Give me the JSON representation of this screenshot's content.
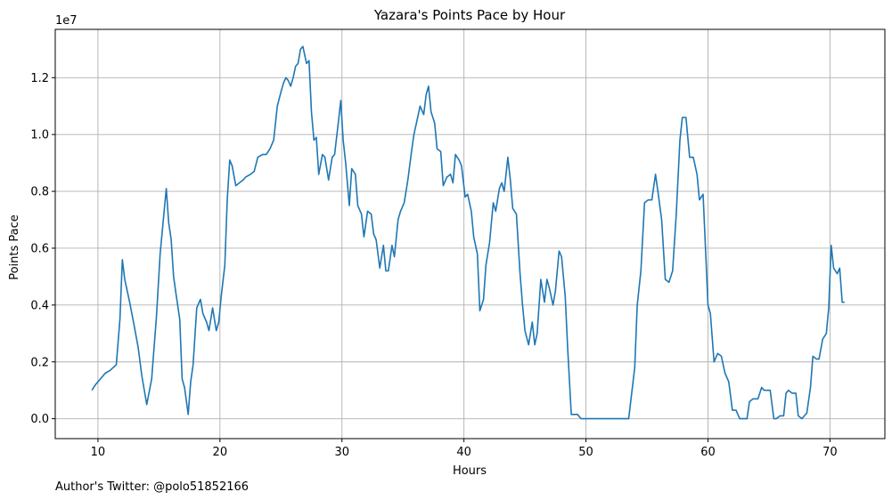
{
  "chart_data": {
    "type": "line",
    "title": "Yazara's Points Pace by Hour",
    "xlabel": "Hours",
    "ylabel": "Points Pace",
    "scale_note": "1e7",
    "footnote": "Author's Twitter: @polo51852166",
    "xlim": [
      6.5,
      74.5
    ],
    "ylim": [
      -0.07,
      1.37
    ],
    "xticks": [
      10,
      20,
      30,
      40,
      50,
      60,
      70
    ],
    "yticks": [
      0.0,
      0.2,
      0.4,
      0.6,
      0.8,
      1.0,
      1.2
    ],
    "ytick_labels": [
      "0.0",
      "0.2",
      "0.4",
      "0.6",
      "0.8",
      "1.0",
      "1.2"
    ],
    "grid": true,
    "colors": {
      "line": "#1f77b4",
      "grid": "#b0b0b0"
    },
    "series": [
      {
        "x": [
          9.5,
          9.8,
          10.2,
          10.6,
          11.0,
          11.5,
          11.8,
          12.0,
          12.2,
          12.6,
          13.0,
          13.3,
          13.6,
          14.0,
          14.4,
          14.8,
          15.1,
          15.4,
          15.6,
          15.8,
          16.0,
          16.2,
          16.4,
          16.7,
          16.9,
          17.1,
          17.4,
          17.6,
          17.8,
          18.1,
          18.4,
          18.6,
          18.9,
          19.1,
          19.4,
          19.7,
          19.9,
          20.1,
          20.4,
          20.6,
          20.8,
          21.0,
          21.3,
          21.6,
          21.9,
          22.1,
          22.5,
          22.8,
          23.1,
          23.5,
          23.8,
          24.1,
          24.4,
          24.7,
          25.0,
          25.2,
          25.4,
          25.6,
          25.8,
          26.0,
          26.2,
          26.4,
          26.6,
          26.8,
          27.1,
          27.3,
          27.5,
          27.7,
          27.9,
          28.1,
          28.4,
          28.6,
          28.9,
          29.2,
          29.4,
          29.7,
          29.9,
          30.1,
          30.3,
          30.6,
          30.8,
          31.1,
          31.3,
          31.6,
          31.8,
          32.1,
          32.4,
          32.6,
          32.8,
          33.1,
          33.4,
          33.6,
          33.8,
          34.1,
          34.3,
          34.6,
          34.8,
          35.1,
          35.4,
          35.7,
          35.9,
          36.1,
          36.4,
          36.7,
          36.9,
          37.1,
          37.3,
          37.6,
          37.8,
          38.1,
          38.3,
          38.6,
          38.9,
          39.1,
          39.3,
          39.6,
          39.8,
          40.1,
          40.3,
          40.6,
          40.8,
          41.1,
          41.3,
          41.6,
          41.8,
          42.1,
          42.4,
          42.6,
          42.9,
          43.1,
          43.3,
          43.6,
          43.8,
          44.0,
          44.3,
          44.6,
          44.8,
          45.0,
          45.3,
          45.6,
          45.8,
          46.0,
          46.3,
          46.6,
          46.8,
          47.0,
          47.3,
          47.5,
          47.8,
          48.0,
          48.3,
          48.5,
          48.8,
          49.0,
          49.3,
          49.6,
          49.8,
          50.0,
          50.5,
          51.0,
          51.5,
          52.0,
          52.5,
          53.0,
          53.5,
          54.0,
          54.2,
          54.5,
          54.8,
          55.1,
          55.4,
          55.7,
          55.9,
          56.2,
          56.5,
          56.8,
          57.1,
          57.4,
          57.7,
          57.9,
          58.2,
          58.5,
          58.8,
          59.1,
          59.3,
          59.6,
          59.8,
          60.0,
          60.2,
          60.5,
          60.8,
          61.1,
          61.4,
          61.7,
          62.0,
          62.3,
          62.6,
          62.9,
          63.2,
          63.4,
          63.7,
          63.9,
          64.1,
          64.4,
          64.6,
          64.9,
          65.1,
          65.4,
          65.6,
          65.9,
          66.2,
          66.4,
          66.6,
          66.9,
          67.2,
          67.4,
          67.7,
          67.9,
          68.1,
          68.4,
          68.6,
          68.9,
          69.1,
          69.4,
          69.7,
          69.9,
          70.1,
          70.3,
          70.6,
          70.8,
          71.0,
          71.2
        ],
        "y": [
          0.1,
          0.12,
          0.14,
          0.16,
          0.17,
          0.19,
          0.35,
          0.56,
          0.49,
          0.41,
          0.32,
          0.25,
          0.15,
          0.05,
          0.14,
          0.36,
          0.58,
          0.72,
          0.81,
          0.69,
          0.63,
          0.5,
          0.44,
          0.35,
          0.14,
          0.11,
          0.015,
          0.13,
          0.19,
          0.39,
          0.42,
          0.37,
          0.34,
          0.31,
          0.39,
          0.31,
          0.34,
          0.43,
          0.54,
          0.77,
          0.91,
          0.89,
          0.82,
          0.83,
          0.84,
          0.85,
          0.86,
          0.87,
          0.92,
          0.93,
          0.93,
          0.95,
          0.98,
          1.1,
          1.15,
          1.18,
          1.2,
          1.19,
          1.17,
          1.2,
          1.24,
          1.25,
          1.3,
          1.31,
          1.25,
          1.26,
          1.08,
          0.98,
          0.99,
          0.86,
          0.93,
          0.92,
          0.84,
          0.92,
          0.93,
          1.04,
          1.12,
          0.98,
          0.9,
          0.75,
          0.88,
          0.86,
          0.75,
          0.72,
          0.64,
          0.73,
          0.72,
          0.65,
          0.63,
          0.53,
          0.61,
          0.52,
          0.52,
          0.61,
          0.57,
          0.7,
          0.73,
          0.76,
          0.84,
          0.94,
          1.0,
          1.04,
          1.1,
          1.07,
          1.14,
          1.17,
          1.08,
          1.04,
          0.95,
          0.94,
          0.82,
          0.85,
          0.86,
          0.83,
          0.93,
          0.91,
          0.89,
          0.78,
          0.79,
          0.73,
          0.64,
          0.58,
          0.38,
          0.42,
          0.54,
          0.62,
          0.76,
          0.73,
          0.81,
          0.83,
          0.8,
          0.92,
          0.84,
          0.74,
          0.72,
          0.51,
          0.4,
          0.31,
          0.26,
          0.34,
          0.26,
          0.3,
          0.49,
          0.41,
          0.49,
          0.46,
          0.4,
          0.45,
          0.59,
          0.57,
          0.43,
          0.25,
          0.015,
          0.015,
          0.015,
          0.0,
          0.0,
          0.0,
          0.0,
          0.0,
          0.0,
          0.0,
          0.0,
          0.0,
          0.0,
          0.18,
          0.4,
          0.52,
          0.76,
          0.77,
          0.77,
          0.86,
          0.8,
          0.7,
          0.49,
          0.48,
          0.52,
          0.72,
          0.98,
          1.06,
          1.06,
          0.92,
          0.92,
          0.86,
          0.77,
          0.79,
          0.6,
          0.4,
          0.37,
          0.2,
          0.23,
          0.22,
          0.16,
          0.13,
          0.03,
          0.03,
          0.0,
          0.0,
          0.0,
          0.06,
          0.07,
          0.07,
          0.07,
          0.11,
          0.1,
          0.1,
          0.1,
          0.0,
          0.0,
          0.01,
          0.01,
          0.09,
          0.1,
          0.09,
          0.09,
          0.01,
          0.0,
          0.01,
          0.02,
          0.11,
          0.22,
          0.21,
          0.21,
          0.28,
          0.3,
          0.39,
          0.61,
          0.53,
          0.51,
          0.53,
          0.41,
          0.41
        ]
      }
    ]
  }
}
